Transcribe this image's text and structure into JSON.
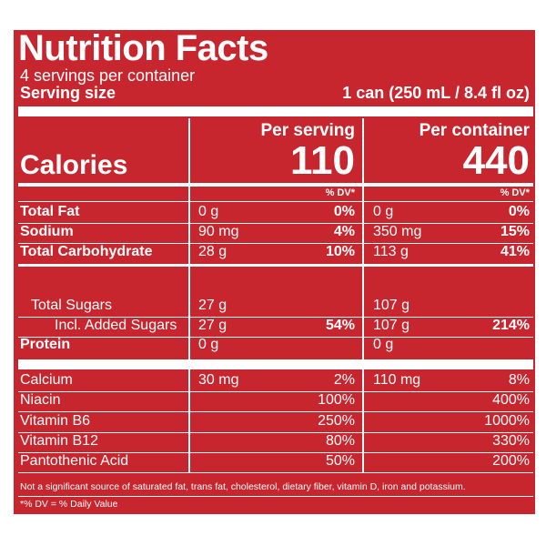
{
  "header": {
    "title": "Nutrition Facts",
    "servings": "4 servings per container",
    "serving_size_label": "Serving size",
    "serving_size_value": "1 can (250 mL / 8.4 fl oz)"
  },
  "columns": {
    "per_serving": "Per serving",
    "per_container": "Per container",
    "dv_header_serving": "% DV*",
    "dv_header_container": "% DV*"
  },
  "calories": {
    "label": "Calories",
    "per_serving": "110",
    "per_container": "440"
  },
  "rows": [
    {
      "name": "Total Fat",
      "serving": "0 g",
      "serving_dv": "0%",
      "container": "0 g",
      "container_dv": "0%"
    },
    {
      "name": "Sodium",
      "serving": "90 mg",
      "serving_dv": "4%",
      "container": "350 mg",
      "container_dv": "15%"
    },
    {
      "name": "Total Carbohydrate",
      "serving": "28 g",
      "serving_dv": "10%",
      "container": "113 g",
      "container_dv": "41%"
    },
    {
      "name": "Total Sugars",
      "serving": "27 g",
      "container": "107 g"
    },
    {
      "name": "Incl. Added Sugars",
      "serving": "27 g",
      "serving_dv": "54%",
      "container": "107 g",
      "container_dv": "214%"
    },
    {
      "name": "Protein",
      "serving": "0 g",
      "container": "0 g"
    },
    {
      "name": "Calcium",
      "serving": "30 mg",
      "serving_dv": "2%",
      "container": "110 mg",
      "container_dv": "8%"
    },
    {
      "name": "Niacin",
      "serving_dv": "100%",
      "container_dv": "400%"
    },
    {
      "name": "Vitamin B6",
      "serving_dv": "250%",
      "container_dv": "1000%"
    },
    {
      "name": "Vitamin B12",
      "serving_dv": "80%",
      "container_dv": "330%"
    },
    {
      "name": "Pantothenic Acid",
      "serving_dv": "50%",
      "container_dv": "200%"
    }
  ],
  "footnotes": [
    "Not a significant source of saturated fat, trans fat, cholesterol, dietary fiber, vitamin D, iron and potassium.",
    "*% DV = % Daily Value"
  ]
}
